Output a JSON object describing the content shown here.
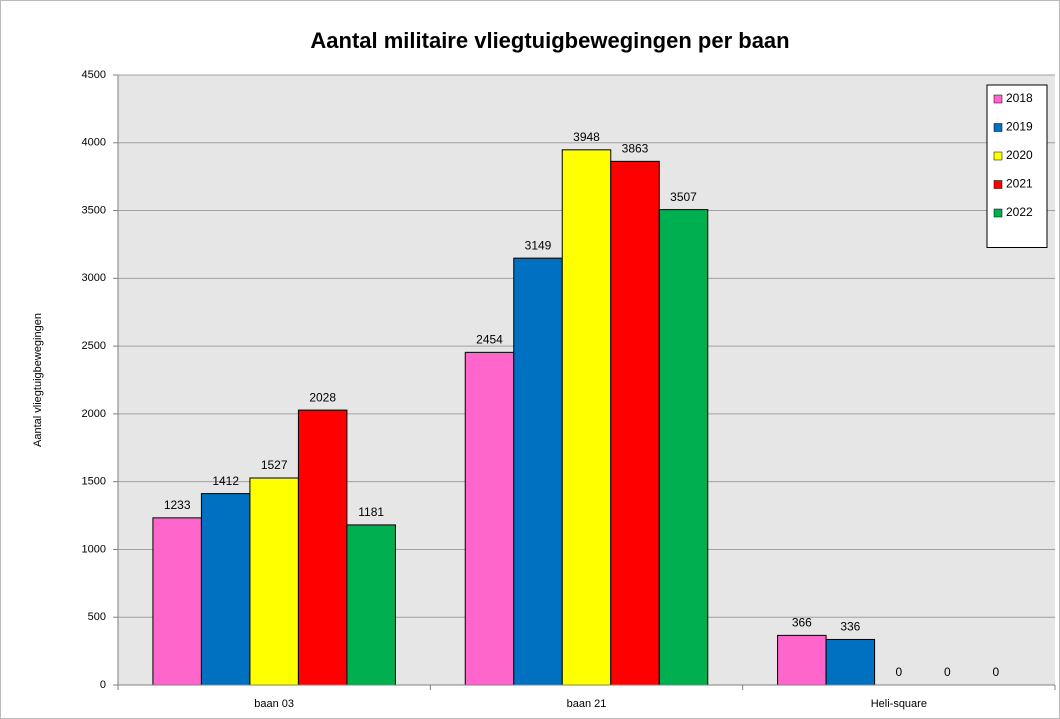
{
  "chart_data": {
    "type": "bar",
    "title": "Aantal militaire vliegtuigbewegingen per baan",
    "y_label": "Aantal vliegtuigbewegingen",
    "categories": [
      "baan 03",
      "baan 21",
      "Heli-square"
    ],
    "series": [
      {
        "name": "2018",
        "color": "#ff66cc",
        "values": [
          1233,
          2454,
          366
        ]
      },
      {
        "name": "2019",
        "color": "#0070c0",
        "values": [
          1412,
          3149,
          336
        ]
      },
      {
        "name": "2020",
        "color": "#ffff00",
        "values": [
          1527,
          3948,
          0
        ]
      },
      {
        "name": "2021",
        "color": "#ff0000",
        "values": [
          2028,
          3863,
          0
        ]
      },
      {
        "name": "2022",
        "color": "#00b050",
        "values": [
          1181,
          3507,
          0
        ]
      }
    ],
    "ylim": [
      0,
      4500
    ],
    "yticks": [
      0,
      500,
      1000,
      1500,
      2000,
      2500,
      3000,
      3500,
      4000,
      4500
    ],
    "grid": true,
    "legend": "top-right"
  }
}
